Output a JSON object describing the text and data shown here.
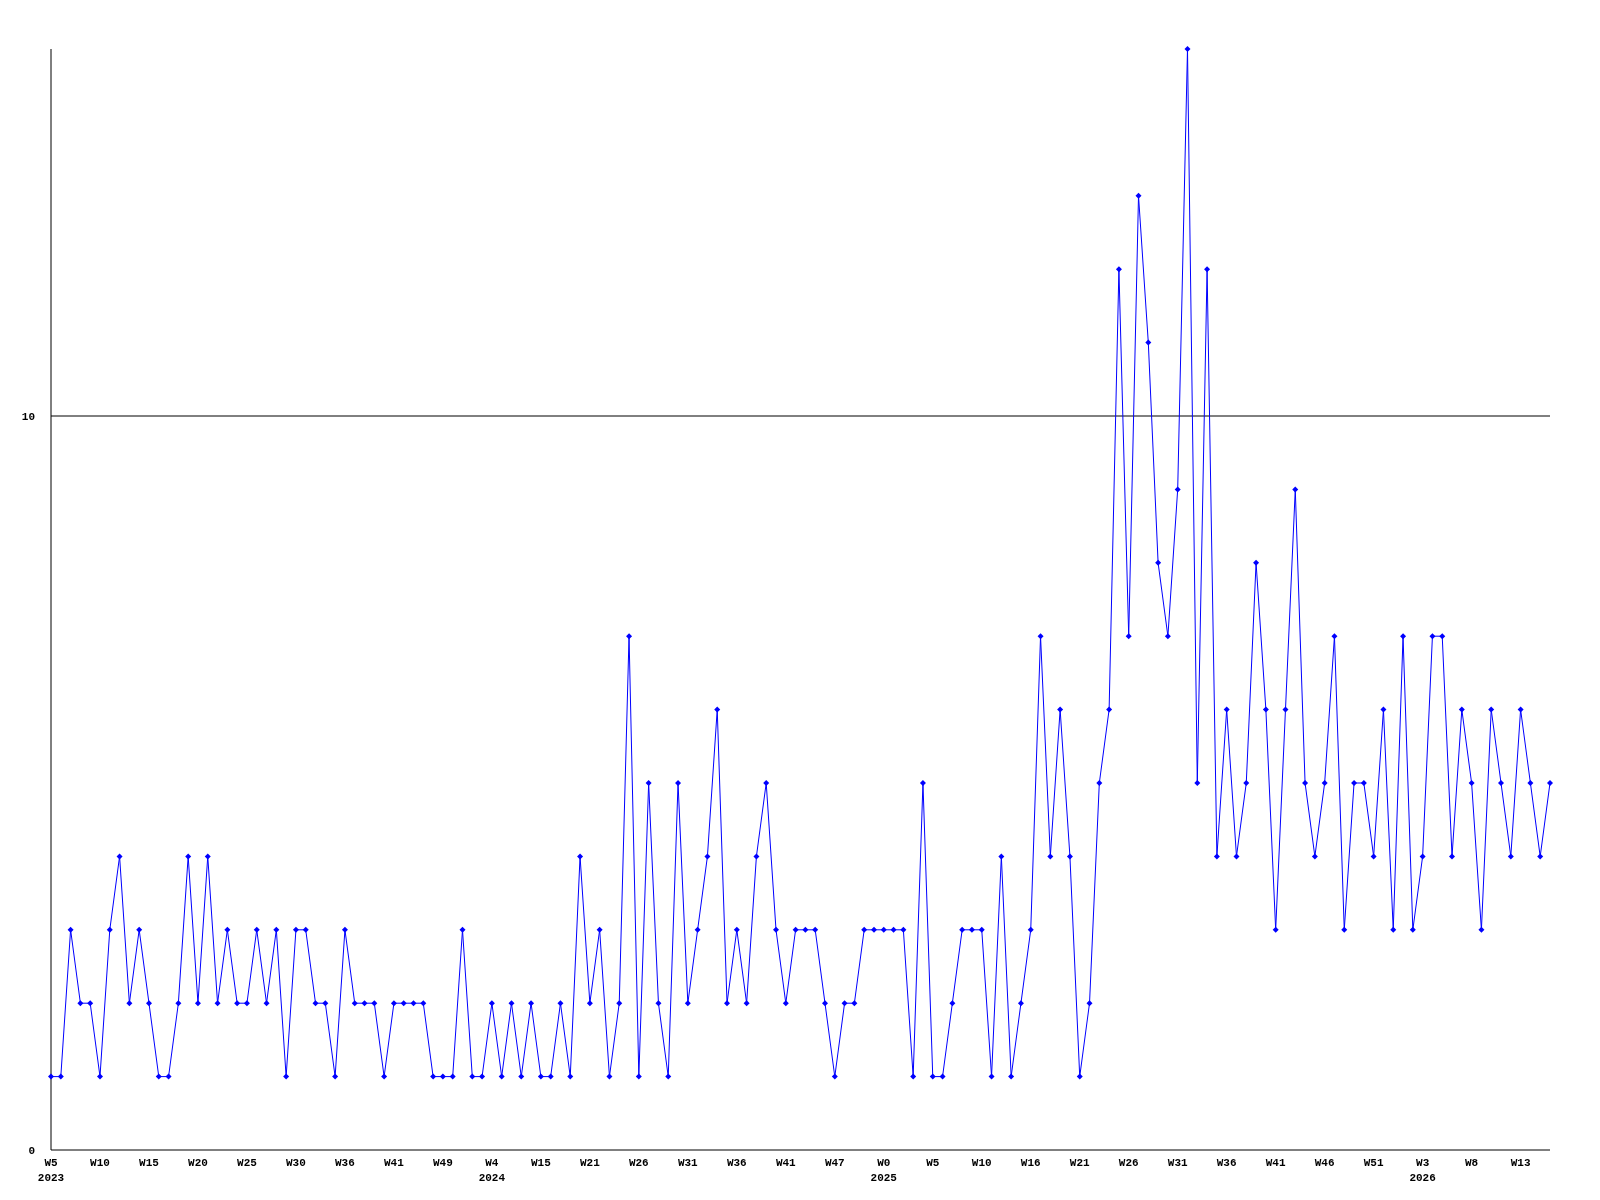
{
  "chart_data": {
    "type": "line",
    "categories": [
      "W5\n2023",
      null,
      null,
      null,
      null,
      "W10",
      null,
      null,
      null,
      null,
      "W15",
      null,
      null,
      null,
      null,
      "W20",
      null,
      null,
      null,
      null,
      "W25",
      null,
      null,
      null,
      null,
      "W30",
      null,
      null,
      null,
      null,
      "W36",
      null,
      null,
      null,
      null,
      "W41",
      null,
      null,
      null,
      null,
      "W49",
      null,
      null,
      null,
      null,
      "W4\n2024",
      null,
      null,
      null,
      null,
      "W15",
      null,
      null,
      null,
      null,
      "W21",
      null,
      null,
      null,
      null,
      "W26",
      null,
      null,
      null,
      null,
      "W31",
      null,
      null,
      null,
      null,
      "W36",
      null,
      null,
      null,
      null,
      "W41",
      null,
      null,
      null,
      null,
      "W47",
      null,
      null,
      null,
      null,
      "W0\n2025",
      null,
      null,
      null,
      null,
      "W5",
      null,
      null,
      null,
      null,
      "W10",
      null,
      null,
      null,
      null,
      "W16",
      null,
      null,
      null,
      null,
      "W21",
      null,
      null,
      null,
      null,
      "W26",
      null,
      null,
      null,
      null,
      "W31",
      null,
      null,
      null,
      null,
      "W36",
      null,
      null,
      null,
      null,
      "W41",
      null,
      null,
      null,
      null,
      "W46",
      null,
      null,
      null,
      null,
      "W51",
      null,
      null,
      null,
      null,
      "W3\n2026",
      null,
      null,
      null,
      null,
      "W8",
      null,
      null,
      null,
      null,
      "W13",
      null,
      null,
      null
    ],
    "series": [
      {
        "color": "#0000ff",
        "values": [
          1,
          1,
          3,
          2,
          2,
          1,
          3,
          4,
          2,
          3,
          2,
          1,
          1,
          2,
          4,
          2,
          4,
          2,
          3,
          2,
          2,
          3,
          2,
          3,
          1,
          3,
          3,
          2,
          2,
          1,
          3,
          2,
          2,
          2,
          1,
          2,
          2,
          2,
          2,
          1,
          1,
          1,
          3,
          1,
          1,
          2,
          1,
          2,
          1,
          2,
          1,
          1,
          2,
          1,
          4,
          2,
          3,
          1,
          2,
          7,
          1,
          5,
          2,
          1,
          5,
          2,
          3,
          4,
          6,
          2,
          3,
          2,
          4,
          5,
          3,
          2,
          3,
          3,
          3,
          2,
          1,
          2,
          2,
          3,
          3,
          3,
          3,
          3,
          1,
          5,
          1,
          1,
          2,
          3,
          3,
          3,
          1,
          4,
          1,
          2,
          3,
          7,
          4,
          6,
          4,
          1,
          2,
          5,
          6,
          12,
          7,
          13,
          11,
          8,
          7,
          9,
          15,
          5,
          12,
          4,
          6,
          4,
          5,
          8,
          6,
          3,
          6,
          9,
          5,
          4,
          5,
          7,
          3,
          5,
          5,
          4,
          6,
          3,
          7,
          3,
          4,
          7,
          7,
          4,
          6,
          5,
          3,
          6,
          5,
          4,
          6,
          5,
          4,
          5
        ]
      }
    ],
    "ylim": [
      0,
      15
    ],
    "yticks": [
      0,
      10
    ],
    "grid": "y",
    "marker": "diamond",
    "line_style": "solid"
  }
}
